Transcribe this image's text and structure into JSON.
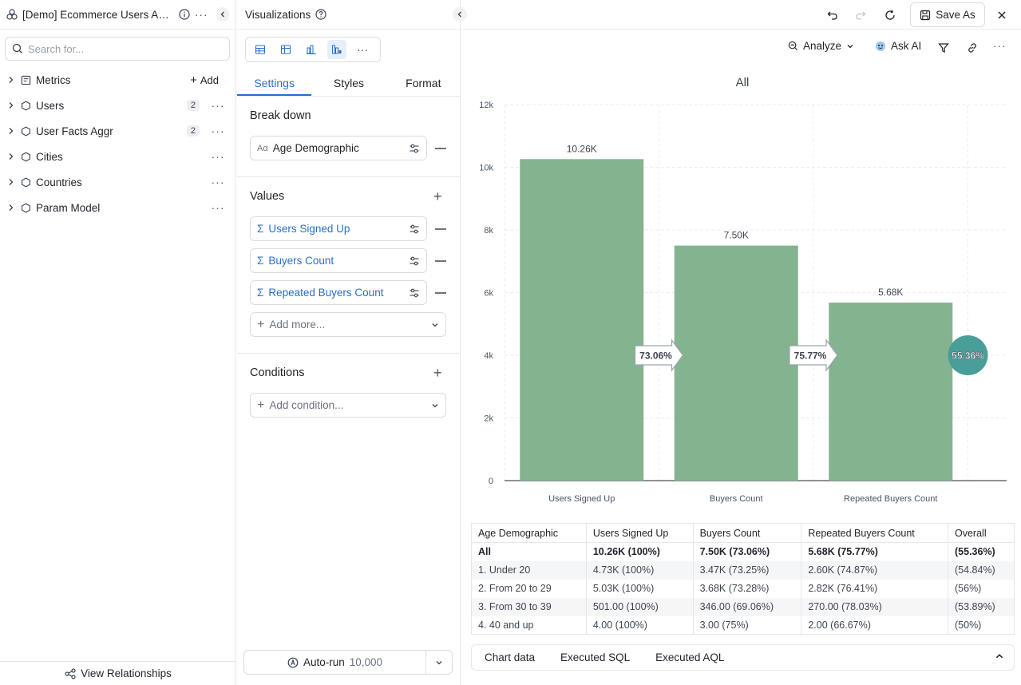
{
  "left": {
    "title": "[Demo] Ecommerce Users Anal...",
    "search_placeholder": "Search for...",
    "add_label": "Add",
    "models": [
      {
        "label": "Metrics",
        "icon": "metrics-icon",
        "count": "",
        "add": true
      },
      {
        "label": "Users",
        "icon": "model-icon",
        "count": "2",
        "add": false
      },
      {
        "label": "User Facts Aggr",
        "icon": "model-icon",
        "count": "2",
        "add": false
      },
      {
        "label": "Cities",
        "icon": "model-icon",
        "count": "",
        "add": false
      },
      {
        "label": "Countries",
        "icon": "model-icon",
        "count": "",
        "add": false
      },
      {
        "label": "Param Model",
        "icon": "model-icon",
        "count": "",
        "add": false
      }
    ],
    "footer_label": "View Relationships"
  },
  "mid": {
    "title": "Visualizations",
    "tabs": [
      "Settings",
      "Styles",
      "Format"
    ],
    "active_tab": "Settings",
    "breakdown": {
      "title": "Break down",
      "field": "Age Demographic"
    },
    "values": {
      "title": "Values",
      "fields": [
        "Users Signed Up",
        "Buyers Count",
        "Repeated Buyers Count"
      ],
      "add_more": "Add more..."
    },
    "conditions": {
      "title": "Conditions",
      "add_condition": "Add condition..."
    },
    "autorun": {
      "label": "Auto-run",
      "limit": "10,000"
    }
  },
  "right": {
    "save_as": "Save As",
    "analyze": "Analyze",
    "ask_ai": "Ask AI",
    "bottom_tabs": [
      "Chart data",
      "Executed SQL",
      "Executed AQL"
    ]
  },
  "chart_data": {
    "type": "bar",
    "title": "All",
    "categories": [
      "Users Signed Up",
      "Buyers Count",
      "Repeated Buyers Count"
    ],
    "values": [
      10260,
      7500,
      5680
    ],
    "data_labels": [
      "10.26K",
      "7.50K",
      "5.68K"
    ],
    "conversion_labels": [
      "73.06%",
      "75.77%"
    ],
    "overall_label": "55.36%",
    "ylim": [
      0,
      12000
    ],
    "yticks": [
      0,
      2000,
      4000,
      6000,
      8000,
      10000,
      12000
    ],
    "ytick_labels": [
      "0",
      "2k",
      "4k",
      "6k",
      "8k",
      "10k",
      "12k"
    ],
    "grid": true,
    "bar_color": "#83b38f",
    "overall_color": "#4a9e9a"
  },
  "table": {
    "headers": [
      "Age Demographic",
      "Users Signed Up",
      "Buyers Count",
      "Repeated Buyers Count",
      "Overall"
    ],
    "rows": [
      [
        "All",
        "10.26K (100%)",
        "7.50K (73.06%)",
        "5.68K (75.77%)",
        "(55.36%)"
      ],
      [
        "1. Under 20",
        "4.73K (100%)",
        "3.47K (73.25%)",
        "2.60K (74.87%)",
        "(54.84%)"
      ],
      [
        "2. From 20 to 29",
        "5.03K (100%)",
        "3.68K (73.28%)",
        "2.82K (76.41%)",
        "(56%)"
      ],
      [
        "3. From 30 to 39",
        "501.00 (100%)",
        "346.00 (69.06%)",
        "270.00 (78.03%)",
        "(53.89%)"
      ],
      [
        "4. 40 and up",
        "4.00 (100%)",
        "3.00 (75%)",
        "2.00 (66.67%)",
        "(50%)"
      ]
    ]
  },
  "colors": {
    "accent": "#2a6fc7",
    "bar": "#83b38f",
    "overall": "#4a9e9a"
  }
}
